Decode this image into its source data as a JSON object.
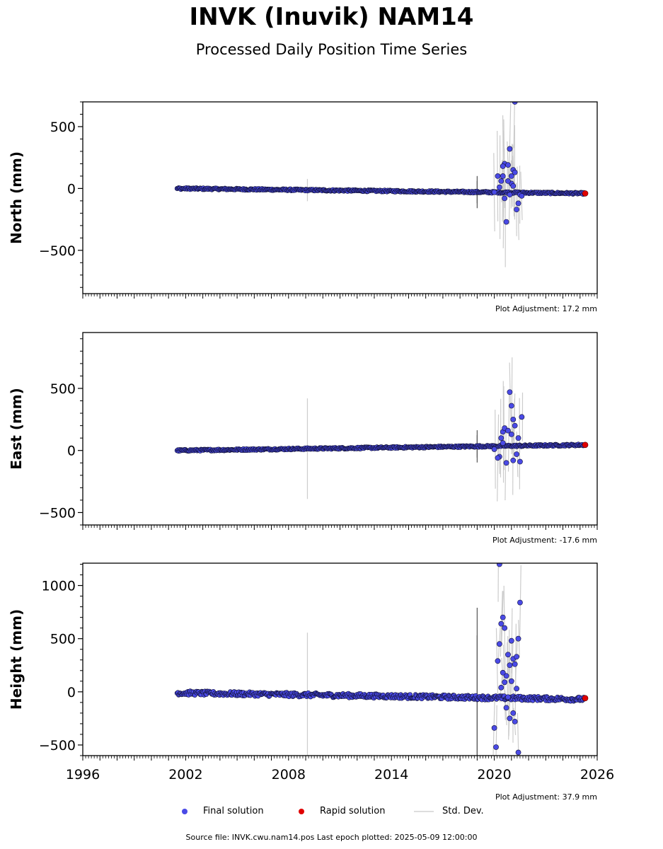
{
  "title": "INVK (Inuvik) NAM14",
  "subtitle": "Processed Daily Position Time Series",
  "footer": "Source file: INVK.cwu.nam14.pos  Last epoch plotted: 2025-05-09 12:00:00",
  "colors": {
    "final": "#4a4ae6",
    "rapid": "#e00000",
    "stddev": "#cccccc",
    "edge": "#111133"
  },
  "legend": {
    "final": "Final solution",
    "rapid": "Rapid solution",
    "stddev": "Std. Dev."
  },
  "chart_data": [
    {
      "type": "scatter",
      "ylabel": "North (mm)",
      "adjustment": "Plot Adjustment: 17.2 mm",
      "xlim": [
        1996,
        2026
      ],
      "ylim": [
        -850,
        700
      ],
      "yticks": [
        500,
        0,
        -500
      ],
      "ytick_labels": [
        "500",
        "0",
        "−500"
      ],
      "grid": false,
      "trend": [
        [
          2001.5,
          0
        ],
        [
          2025.3,
          -40
        ]
      ],
      "outliers": [
        [
          2020.0,
          -30
        ],
        [
          2020.3,
          10
        ],
        [
          2020.4,
          60
        ],
        [
          2020.5,
          100
        ],
        [
          2020.6,
          200
        ],
        [
          2020.8,
          190
        ],
        [
          2020.9,
          320
        ],
        [
          2021.0,
          100
        ],
        [
          2021.1,
          150
        ],
        [
          2021.2,
          130
        ],
        [
          2020.7,
          -270
        ],
        [
          2021.3,
          -170
        ],
        [
          2020.5,
          180
        ],
        [
          2021.0,
          40
        ],
        [
          2020.2,
          100
        ],
        [
          2021.2,
          700
        ],
        [
          2021.4,
          -120
        ],
        [
          2020.9,
          -50
        ],
        [
          2021.5,
          -50
        ],
        [
          2020.6,
          -80
        ],
        [
          2021.6,
          -60
        ],
        [
          2020.8,
          60
        ],
        [
          2021.1,
          20
        ]
      ],
      "rapid_end": [
        2025.3,
        -40
      ]
    },
    {
      "type": "scatter",
      "ylabel": "East (mm)",
      "adjustment": "Plot Adjustment: -17.6 mm",
      "xlim": [
        1996,
        2026
      ],
      "ylim": [
        -600,
        950
      ],
      "yticks": [
        500,
        0,
        -500
      ],
      "ytick_labels": [
        "500",
        "0",
        "−500"
      ],
      "grid": false,
      "trend": [
        [
          2001.5,
          0
        ],
        [
          2025.3,
          45
        ]
      ],
      "outliers": [
        [
          2020.0,
          10
        ],
        [
          2020.4,
          100
        ],
        [
          2020.5,
          150
        ],
        [
          2020.6,
          180
        ],
        [
          2020.8,
          160
        ],
        [
          2020.9,
          470
        ],
        [
          2021.0,
          360
        ],
        [
          2021.1,
          250
        ],
        [
          2021.2,
          200
        ],
        [
          2021.4,
          100
        ],
        [
          2021.6,
          270
        ],
        [
          2020.3,
          -50
        ],
        [
          2020.7,
          -100
        ],
        [
          2021.1,
          -80
        ],
        [
          2021.3,
          -30
        ],
        [
          2020.5,
          60
        ],
        [
          2021.0,
          130
        ],
        [
          2020.2,
          -60
        ],
        [
          2021.5,
          -90
        ]
      ],
      "rapid_end": [
        2025.3,
        45
      ]
    },
    {
      "type": "scatter",
      "ylabel": "Height (mm)",
      "adjustment": "Plot Adjustment: 37.9 mm",
      "xlim": [
        1996,
        2026
      ],
      "ylim": [
        -600,
        1210
      ],
      "yticks": [
        1000,
        500,
        0,
        -500
      ],
      "ytick_labels": [
        "1000",
        "500",
        "0",
        "−500"
      ],
      "xticks": [
        1996,
        2002,
        2008,
        2014,
        2020,
        2026
      ],
      "grid": false,
      "trend": [
        [
          2001.5,
          -10
        ],
        [
          2025.3,
          -70
        ]
      ],
      "outliers": [
        [
          2020.0,
          -340
        ],
        [
          2020.1,
          -520
        ],
        [
          2020.2,
          290
        ],
        [
          2020.3,
          450
        ],
        [
          2020.4,
          640
        ],
        [
          2020.5,
          700
        ],
        [
          2020.6,
          600
        ],
        [
          2020.7,
          150
        ],
        [
          2020.8,
          350
        ],
        [
          2020.9,
          250
        ],
        [
          2021.0,
          480
        ],
        [
          2021.1,
          310
        ],
        [
          2021.2,
          260
        ],
        [
          2021.3,
          330
        ],
        [
          2021.4,
          500
        ],
        [
          2021.5,
          840
        ],
        [
          2020.3,
          1200
        ],
        [
          2020.5,
          180
        ],
        [
          2020.9,
          -250
        ],
        [
          2021.2,
          -280
        ],
        [
          2021.4,
          -570
        ],
        [
          2020.6,
          90
        ],
        [
          2020.7,
          -150
        ],
        [
          2021.0,
          100
        ],
        [
          2020.4,
          40
        ],
        [
          2021.3,
          30
        ],
        [
          2020.8,
          -50
        ],
        [
          2021.1,
          -200
        ]
      ],
      "rapid_end": [
        2025.3,
        -60
      ]
    }
  ]
}
